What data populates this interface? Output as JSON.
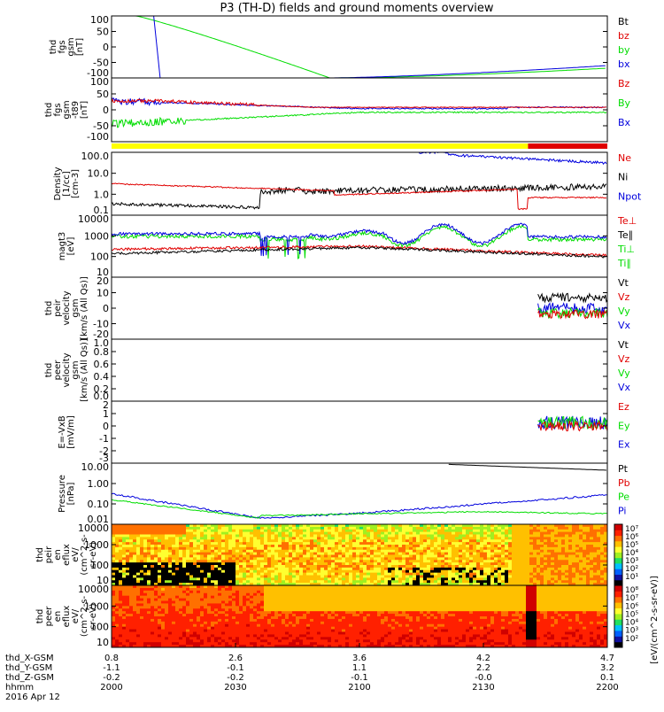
{
  "title": "P3 (TH-D) fields and ground moments overview",
  "colors": {
    "black": "#000000",
    "red": "#e00000",
    "green": "#00dd00",
    "blue": "#0000dd",
    "yellow": "#ffff00",
    "mode_red": "#e00000"
  },
  "mode_bar": {
    "segments": [
      {
        "from": 0,
        "to": 0.84,
        "color": "#ffff00"
      },
      {
        "from": 0.84,
        "to": 1.0,
        "color": "#e00000"
      }
    ]
  },
  "panels": [
    {
      "ylabel": [
        "thd",
        "fgs",
        "gsm",
        "[nT]"
      ],
      "ticks": [
        "100",
        "50",
        "0",
        "-50",
        "-100"
      ],
      "legend": [
        {
          "text": "Bt",
          "color": "black"
        },
        {
          "text": "bz",
          "color": "red"
        },
        {
          "text": "by",
          "color": "green"
        },
        {
          "text": "bx",
          "color": "blue"
        }
      ]
    },
    {
      "ylabel": [
        "thd",
        "fgs",
        "gsm",
        "-t89",
        "[nT]"
      ],
      "ticks": [
        "100",
        "50",
        "0",
        "-50",
        "-100"
      ],
      "legend": [
        {
          "text": "Bz",
          "color": "red"
        },
        {
          "text": "By",
          "color": "green"
        },
        {
          "text": "Bx",
          "color": "blue"
        }
      ]
    },
    {
      "ylabel": [
        "Density",
        "[1/cc]",
        "[cm-3]"
      ],
      "ticks": [
        "100.0",
        "10.0",
        "1.0",
        "0.1"
      ],
      "legend": [
        {
          "text": "Ne",
          "color": "red"
        },
        {
          "text": "Ni",
          "color": "black"
        },
        {
          "text": "Npot",
          "color": "blue"
        }
      ]
    },
    {
      "ylabel": [
        "magt3",
        "[eV]"
      ],
      "ticks": [
        "10000",
        "1000",
        "100",
        "10"
      ],
      "legend": [
        {
          "text": "Te⊥",
          "color": "red"
        },
        {
          "text": "Te∥",
          "color": "black"
        },
        {
          "text": "Ti⊥",
          "color": "green"
        },
        {
          "text": "Ti∥",
          "color": "green"
        }
      ]
    },
    {
      "ylabel": [
        "thd",
        "peir",
        "velocity",
        "gsm",
        "[km/s (All Qs)]"
      ],
      "ticks": [
        "20",
        "10",
        "0",
        "-10",
        "-20"
      ],
      "legend": [
        {
          "text": "Vt",
          "color": "black"
        },
        {
          "text": "Vz",
          "color": "red"
        },
        {
          "text": "Vy",
          "color": "green"
        },
        {
          "text": "Vx",
          "color": "blue"
        }
      ]
    },
    {
      "ylabel": [
        "thd",
        "peer",
        "velocity",
        "gsm",
        "[km/s (All Qs)]"
      ],
      "ticks": [
        "1.0",
        "0.8",
        "0.6",
        "0.4",
        "0.2",
        "0.0"
      ],
      "legend": [
        {
          "text": "Vt",
          "color": "black"
        },
        {
          "text": "Vz",
          "color": "red"
        },
        {
          "text": "Vy",
          "color": "green"
        },
        {
          "text": "Vx",
          "color": "blue"
        }
      ]
    },
    {
      "ylabel": [
        "E=-VxB",
        "[mV/m]"
      ],
      "ticks": [
        "2",
        "1",
        "0",
        "-1",
        "-2",
        "-3"
      ],
      "legend": [
        {
          "text": "Ez",
          "color": "red"
        },
        {
          "text": "Ey",
          "color": "green"
        },
        {
          "text": "Ex",
          "color": "blue"
        }
      ]
    },
    {
      "ylabel": [
        "Pressure",
        "[nPa]"
      ],
      "ticks": [
        "10.00",
        "1.00",
        "0.10",
        "0.01"
      ],
      "legend": [
        {
          "text": "Pt",
          "color": "black"
        },
        {
          "text": "Pb",
          "color": "red"
        },
        {
          "text": "Pe",
          "color": "green"
        },
        {
          "text": "Pi",
          "color": "blue"
        }
      ]
    },
    {
      "ylabel": [
        "thd",
        "peir",
        "en",
        "eflux",
        "eV/",
        "(cm^2-s-",
        "sr-eV)"
      ],
      "ticks": [
        "10000",
        "1000",
        "100",
        "10"
      ],
      "legend": []
    },
    {
      "ylabel": [
        "thd",
        "peer",
        "en",
        "eflux",
        "eV/",
        "(cm^2-s-",
        "sr-eV)"
      ],
      "ticks": [
        "10000",
        "1000",
        "100",
        "10"
      ],
      "legend": []
    }
  ],
  "colorbar_ticks": [
    "10⁷",
    "10⁶",
    "10⁵",
    "10⁴",
    "10³",
    "10²",
    "10¹"
  ],
  "colorbar_ticks2": [
    "10⁸",
    "10⁷",
    "10⁶",
    "10⁵",
    "10⁴",
    "10³",
    "10²"
  ],
  "colorbar_label": "[eV/(cm^2-s-sr-eV)]",
  "x_axis": {
    "rows": [
      {
        "label": "thd_X-GSM",
        "values": [
          "0.8",
          "2.6",
          "3.6",
          "4.2",
          "4.7"
        ]
      },
      {
        "label": "thd_Y-GSM",
        "values": [
          "-1.1",
          "-0.1",
          "1.1",
          "2.2",
          "3.2"
        ]
      },
      {
        "label": "thd_Z-GSM",
        "values": [
          "-0.2",
          "-0.2",
          "-0.1",
          "-0.0",
          "0.1"
        ]
      },
      {
        "label": "hhmm",
        "values": [
          "2000",
          "2030",
          "2100",
          "2130",
          "2200"
        ]
      }
    ],
    "date": "2016 Apr 12"
  },
  "chart_data": {
    "type": "line",
    "title": "P3 (TH-D) fields and ground moments overview",
    "x": [
      "2000",
      "2030",
      "2100",
      "2130",
      "2200"
    ],
    "xlabel": "hhmm",
    "series": [
      {
        "name": "by",
        "values": [
          300,
          60,
          -95,
          -90,
          -75
        ]
      },
      {
        "name": "bx",
        "values": [
          150,
          -100,
          -100,
          -80,
          -45
        ]
      },
      {
        "name": "By",
        "values": [
          -45,
          -30,
          -15,
          -10,
          -8
        ]
      },
      {
        "name": "Bx",
        "values": [
          35,
          25,
          15,
          10,
          8
        ]
      },
      {
        "name": "Ne",
        "values": [
          3,
          1.2,
          1.0,
          1.4,
          0.5
        ]
      },
      {
        "name": "Ni",
        "values": [
          0.3,
          0.3,
          2.0,
          2.5,
          2.0
        ]
      },
      {
        "name": "Pi",
        "values": [
          0.2,
          0.03,
          0.1,
          0.4,
          0.4
        ]
      },
      {
        "name": "Pe",
        "values": [
          0.1,
          0.01,
          0.05,
          0.05,
          0.02
        ]
      }
    ]
  }
}
